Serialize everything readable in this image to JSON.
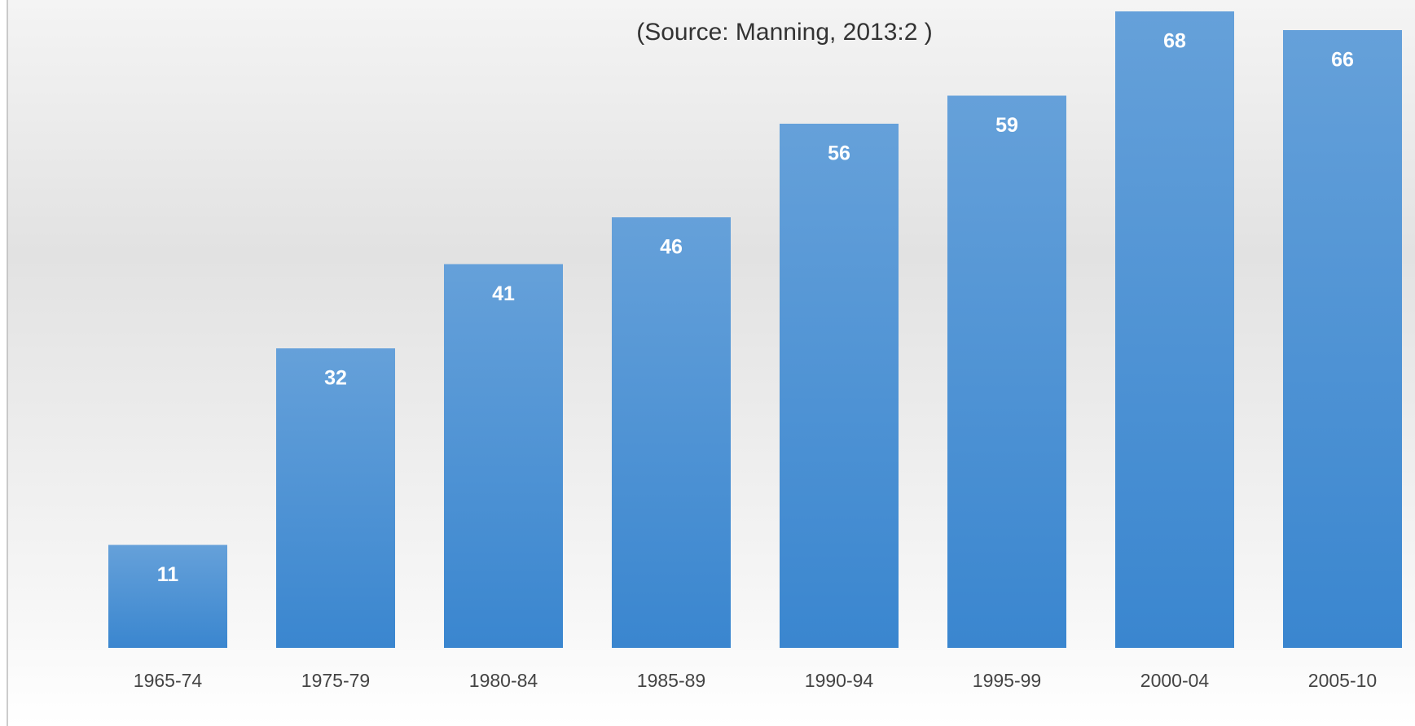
{
  "chart_data": {
    "type": "bar",
    "subtitle": "(Source: Manning, 2013:2 )",
    "categories": [
      "1965-74",
      "1975-79",
      "1980-84",
      "1985-89",
      "1990-94",
      "1995-99",
      "2000-04",
      "2005-10"
    ],
    "values": [
      11,
      32,
      41,
      46,
      56,
      59,
      68,
      66
    ],
    "color": "#3a86cf"
  }
}
